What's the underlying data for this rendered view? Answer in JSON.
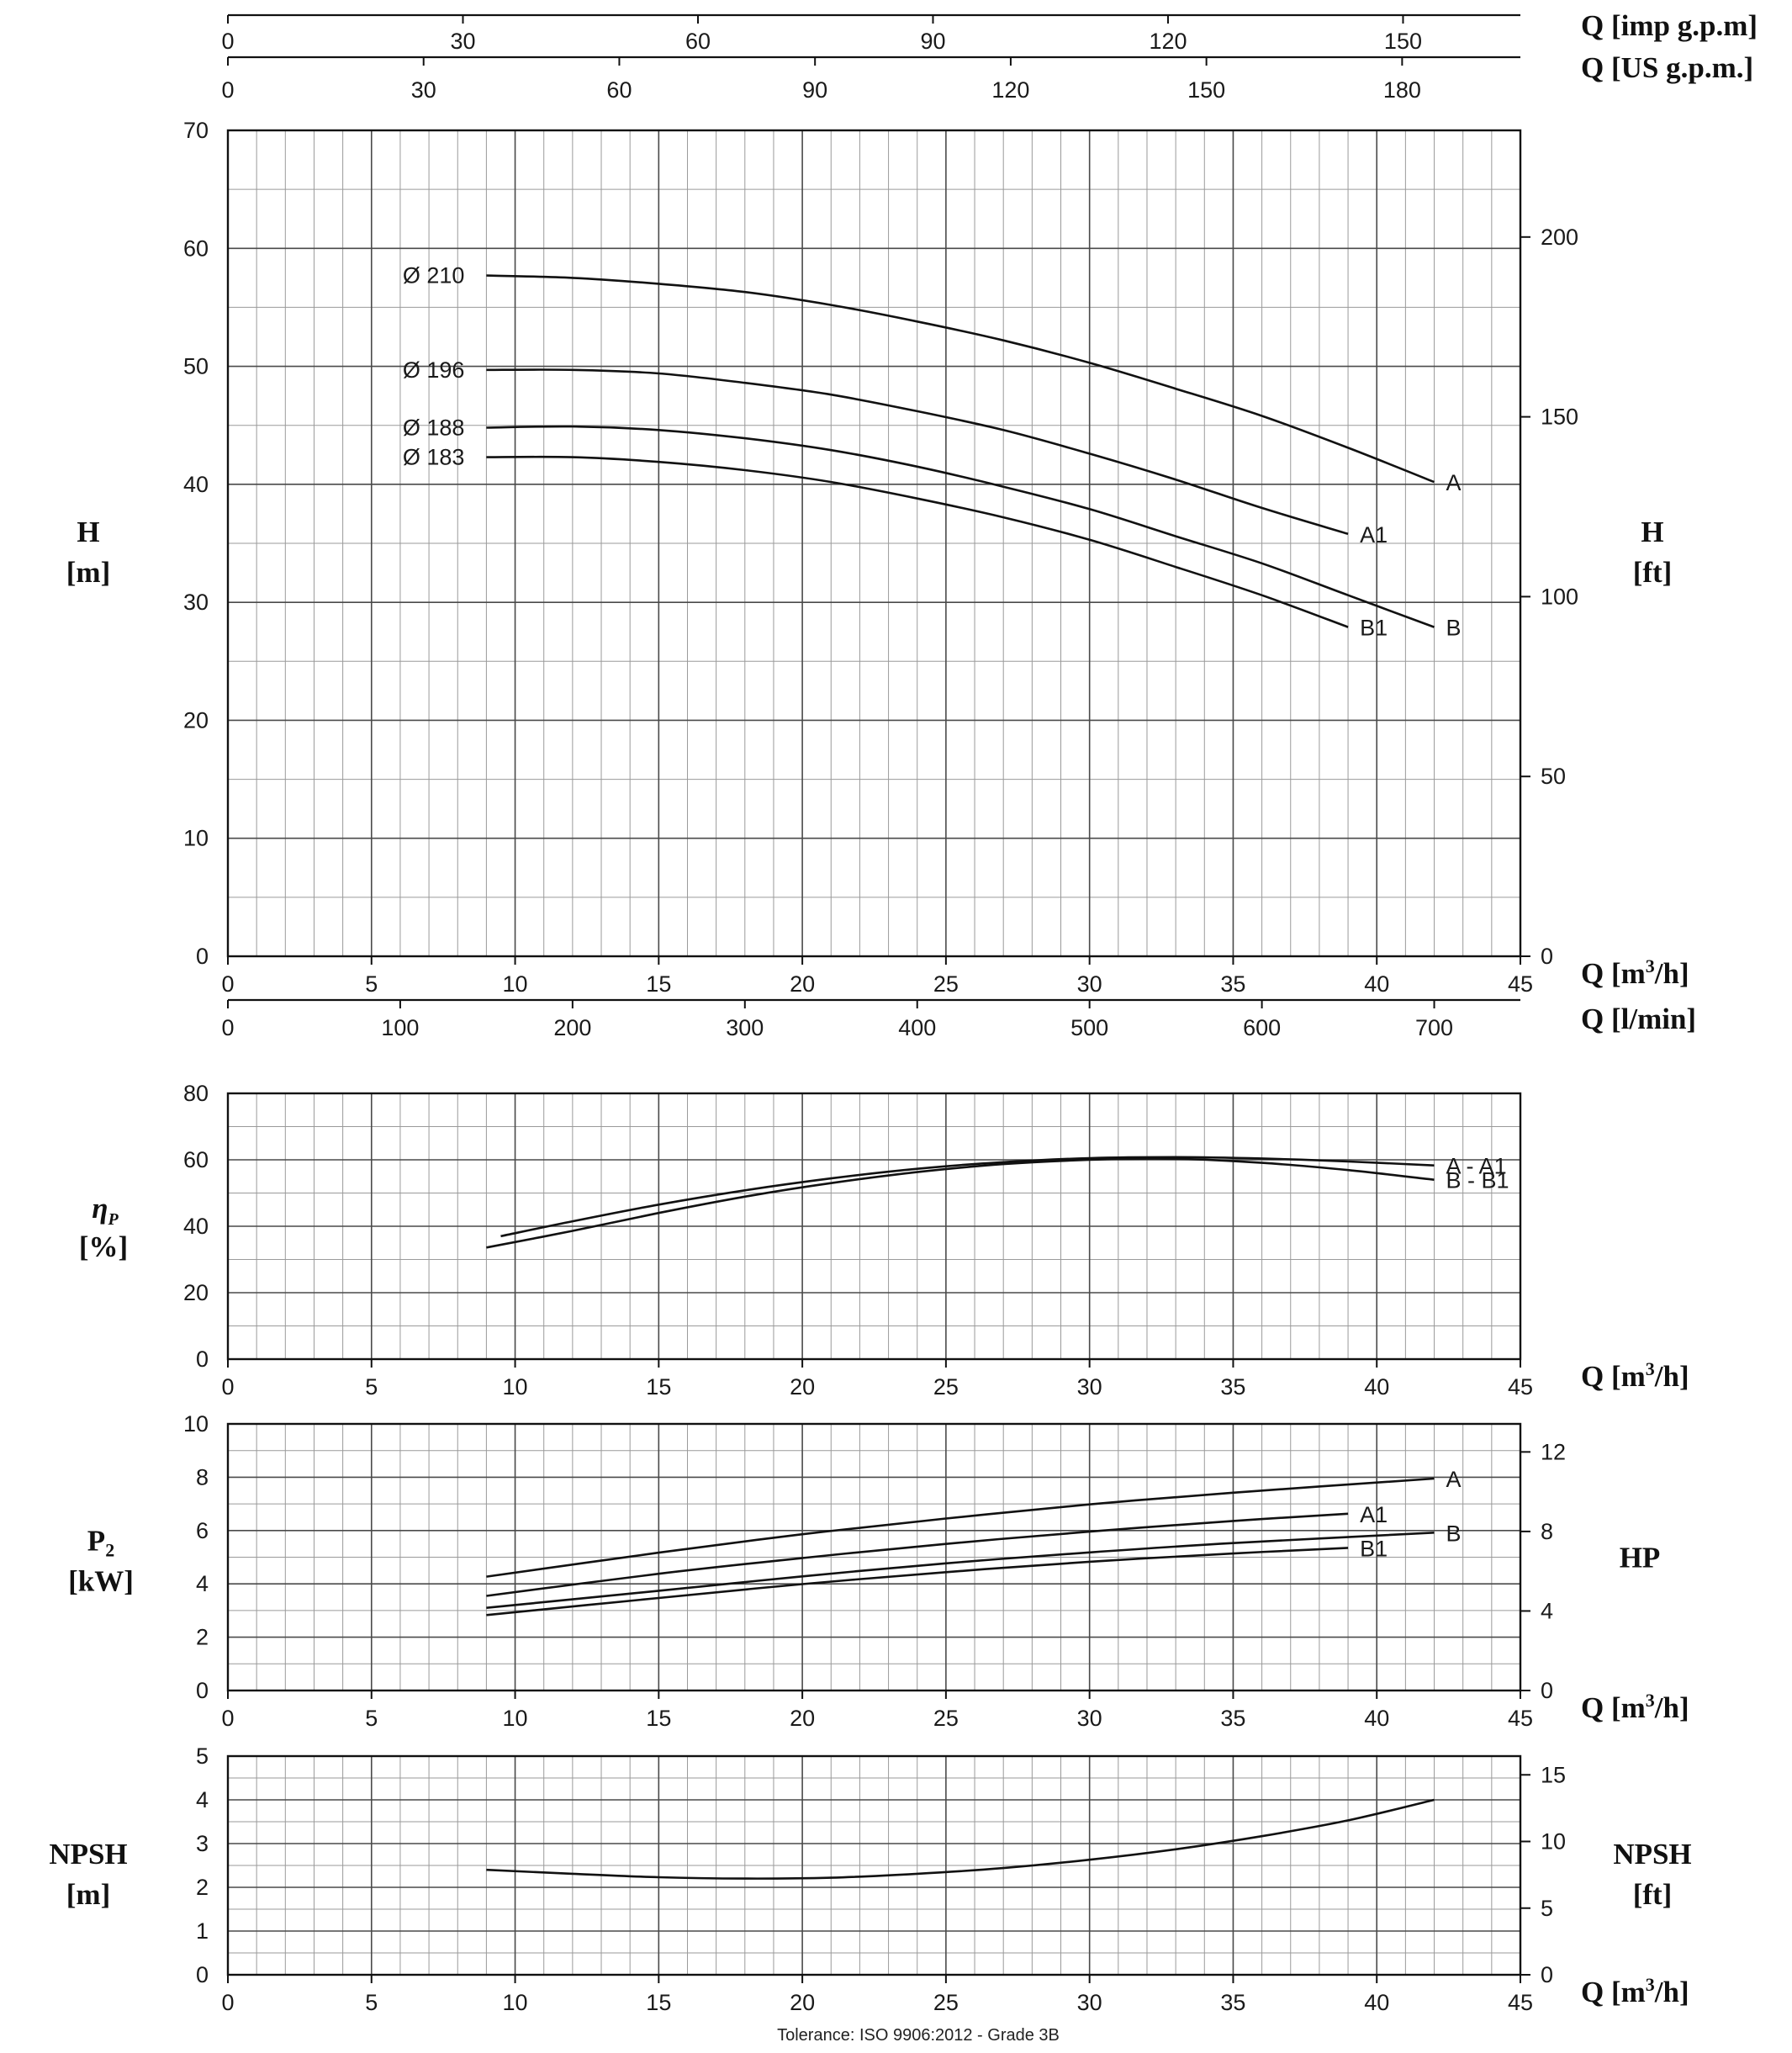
{
  "top_axes": {
    "imp": {
      "ticks": [
        0,
        30,
        60,
        90,
        120,
        150
      ],
      "label": "Q [imp g.p.m]"
    },
    "us": {
      "ticks": [
        0,
        30,
        60,
        90,
        120,
        150,
        180
      ],
      "label": "Q [US g.p.m.]"
    }
  },
  "chart_data": [
    {
      "type": "line",
      "id": "head",
      "x_label": "Q [m³/h]",
      "x_ticks": [
        0,
        5,
        10,
        15,
        20,
        25,
        30,
        35,
        40,
        45
      ],
      "xlim": [
        0,
        45
      ],
      "ylabel_left": [
        "H",
        "[m]"
      ],
      "ylim": [
        0,
        70
      ],
      "y_ticks": [
        0,
        10,
        20,
        30,
        40,
        50,
        60,
        70
      ],
      "ylabel_right": [
        "H",
        "[ft]"
      ],
      "y2_ticks": [
        0,
        50,
        100,
        150,
        200
      ],
      "y2_per_y": 3.2808,
      "secondary_x": {
        "label": "Q [l/min]",
        "ticks": [
          0,
          100,
          200,
          300,
          400,
          500,
          600,
          700
        ]
      },
      "grid": true,
      "series": [
        {
          "name": "A",
          "diameter": "Ø 210",
          "x": [
            9,
            12,
            15,
            18,
            21,
            24,
            27,
            30,
            33,
            36,
            39,
            42
          ],
          "y": [
            57.7,
            57.5,
            57.0,
            56.3,
            55.2,
            53.8,
            52.2,
            50.3,
            48.1,
            45.8,
            43.1,
            40.2
          ]
        },
        {
          "name": "A1",
          "diameter": "Ø 196",
          "x": [
            9,
            12,
            15,
            18,
            21,
            24,
            27,
            30,
            33,
            36,
            39
          ],
          "y": [
            49.7,
            49.7,
            49.4,
            48.6,
            47.6,
            46.2,
            44.6,
            42.6,
            40.4,
            38.0,
            35.8
          ]
        },
        {
          "name": "B",
          "diameter": "Ø 188",
          "x": [
            9,
            12,
            15,
            18,
            21,
            24,
            27,
            30,
            33,
            36,
            39,
            42
          ],
          "y": [
            44.8,
            44.9,
            44.6,
            43.9,
            42.9,
            41.5,
            39.8,
            37.9,
            35.6,
            33.3,
            30.6,
            27.9
          ]
        },
        {
          "name": "B1",
          "diameter": "Ø 183",
          "x": [
            9,
            12,
            15,
            18,
            21,
            24,
            27,
            30,
            33,
            36,
            39
          ],
          "y": [
            42.3,
            42.3,
            41.9,
            41.2,
            40.2,
            38.8,
            37.2,
            35.3,
            33.0,
            30.6,
            27.9
          ]
        }
      ]
    },
    {
      "type": "line",
      "id": "efficiency",
      "x_label": "Q [m³/h]",
      "x_ticks": [
        0,
        5,
        10,
        15,
        20,
        25,
        30,
        35,
        40,
        45
      ],
      "xlim": [
        0,
        45
      ],
      "ylabel_left": [
        "ηP",
        "[%]"
      ],
      "ylim": [
        0,
        80
      ],
      "y_ticks": [
        0,
        20,
        40,
        60,
        80
      ],
      "grid": true,
      "series": [
        {
          "name": "A - A1",
          "x": [
            9.5,
            12,
            15,
            18,
            21,
            24,
            27,
            30,
            33,
            36,
            39,
            42
          ],
          "y": [
            37.0,
            41.5,
            46.5,
            50.8,
            54.4,
            57.3,
            59.3,
            60.5,
            60.8,
            60.4,
            59.5,
            58.3
          ]
        },
        {
          "name": "B - B1",
          "x": [
            9,
            12,
            15,
            18,
            21,
            24,
            27,
            30,
            33,
            36,
            39,
            42
          ],
          "y": [
            33.6,
            38.6,
            44.0,
            48.9,
            53.0,
            56.3,
            58.7,
            60.0,
            60.3,
            59.1,
            56.9,
            54.0
          ]
        }
      ]
    },
    {
      "type": "line",
      "id": "power",
      "x_label": "Q [m³/h]",
      "x_ticks": [
        0,
        5,
        10,
        15,
        20,
        25,
        30,
        35,
        40,
        45
      ],
      "xlim": [
        0,
        45
      ],
      "ylabel_left": [
        "P2",
        "[kW]"
      ],
      "ylim": [
        0,
        10
      ],
      "y_ticks": [
        0,
        2,
        4,
        6,
        8,
        10
      ],
      "ylabel_right": [
        "HP"
      ],
      "y2_ticks": [
        0,
        4,
        8,
        12
      ],
      "y2_per_y": 1.341,
      "grid": true,
      "series": [
        {
          "name": "A",
          "x": [
            9,
            15,
            20,
            25,
            30,
            35,
            42
          ],
          "y": [
            4.27,
            5.17,
            5.86,
            6.45,
            6.98,
            7.42,
            7.95
          ]
        },
        {
          "name": "A1",
          "x": [
            9,
            15,
            20,
            25,
            30,
            35,
            39
          ],
          "y": [
            3.55,
            4.38,
            4.97,
            5.5,
            5.96,
            6.36,
            6.63
          ]
        },
        {
          "name": "B",
          "x": [
            9,
            15,
            20,
            25,
            30,
            35,
            42
          ],
          "y": [
            3.1,
            3.74,
            4.28,
            4.77,
            5.18,
            5.53,
            5.92
          ]
        },
        {
          "name": "B1",
          "x": [
            9,
            15,
            20,
            25,
            30,
            35,
            39
          ],
          "y": [
            2.83,
            3.47,
            3.99,
            4.44,
            4.83,
            5.14,
            5.35
          ]
        }
      ]
    },
    {
      "type": "line",
      "id": "npsh",
      "x_label": "Q [m³/h]",
      "x_ticks": [
        0,
        5,
        10,
        15,
        20,
        25,
        30,
        35,
        40,
        45
      ],
      "xlim": [
        0,
        45
      ],
      "ylabel_left": [
        "NPSH",
        "[m]"
      ],
      "ylim": [
        0,
        5
      ],
      "y_ticks": [
        0,
        1,
        2,
        3,
        4,
        5
      ],
      "ylabel_right": [
        "NPSH",
        "[ft]"
      ],
      "y2_ticks": [
        0,
        5,
        10,
        15
      ],
      "y2_per_y": 3.2808,
      "grid": true,
      "series": [
        {
          "name": "",
          "x": [
            9,
            12,
            15,
            18,
            21,
            24,
            27,
            30,
            33,
            36,
            39,
            42
          ],
          "y": [
            2.4,
            2.31,
            2.23,
            2.2,
            2.22,
            2.31,
            2.44,
            2.63,
            2.87,
            3.17,
            3.53,
            4.0
          ]
        }
      ]
    }
  ],
  "footer": {
    "tolerance": "Tolerance: ISO 9906:2012 - Grade 3B"
  }
}
